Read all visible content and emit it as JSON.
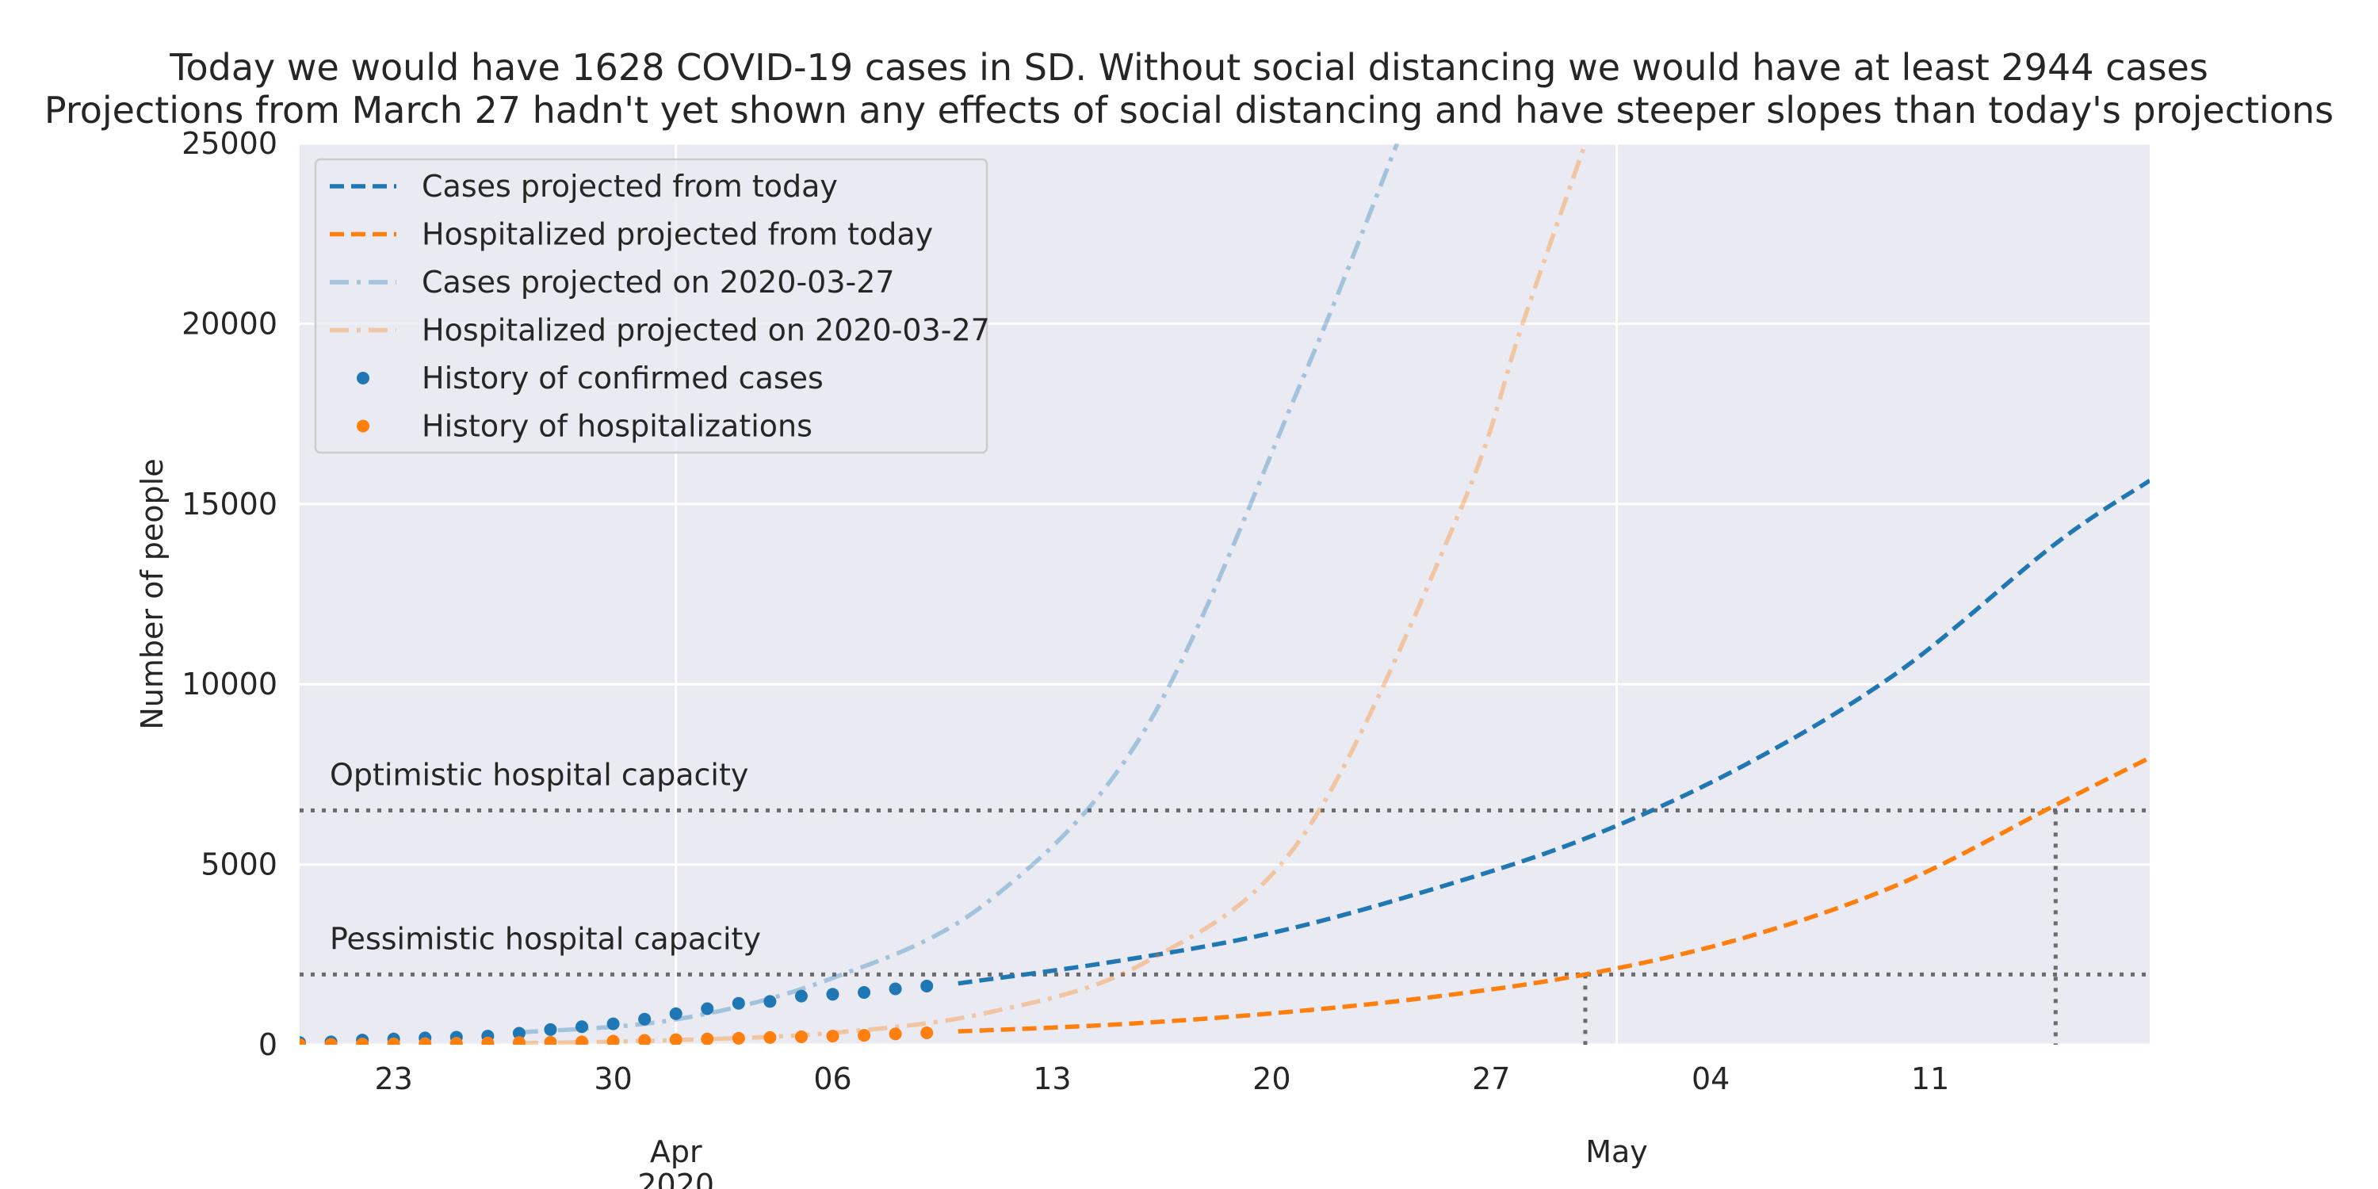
{
  "chart_data": {
    "type": "line",
    "title": "Today we would have 1628 COVID-19 cases in SD. Without social distancing we would have at least 2944 cases",
    "subtitle": "Projections from March 27 hadn't yet shown any effects of social distancing and have steeper slopes than today's projections",
    "ylabel": "Number of people",
    "xlabel": "",
    "x_range": [
      "2020-03-20",
      "2020-05-18"
    ],
    "ylim": [
      0,
      25000
    ],
    "y_ticks": [
      0,
      5000,
      10000,
      15000,
      20000,
      25000
    ],
    "x_ticks": [
      {
        "date": "2020-03-23",
        "label": "23"
      },
      {
        "date": "2020-03-30",
        "label": "30"
      },
      {
        "date": "2020-04-06",
        "label": "06"
      },
      {
        "date": "2020-04-13",
        "label": "13"
      },
      {
        "date": "2020-04-20",
        "label": "20"
      },
      {
        "date": "2020-04-27",
        "label": "27"
      },
      {
        "date": "2020-05-04",
        "label": "04"
      },
      {
        "date": "2020-05-11",
        "label": "11"
      }
    ],
    "x_major_ticks": [
      {
        "date": "2020-04-01",
        "label": "Apr",
        "sublabel": "2020"
      },
      {
        "date": "2020-05-01",
        "label": "May",
        "sublabel": ""
      }
    ],
    "grid": true,
    "legend_placement": "top-left",
    "capacity_lines": [
      {
        "label": "Optimistic hospital capacity",
        "value": 6500,
        "crossings": [
          "2020-05-15"
        ]
      },
      {
        "label": "Pessimistic hospital capacity",
        "value": 1950,
        "crossings": [
          "2020-04-30"
        ]
      }
    ],
    "series": [
      {
        "name": "Cases projected from today",
        "color": "#1f77b4",
        "style": "dashed",
        "opacity": 1,
        "points": [
          [
            "2020-04-10",
            1700
          ],
          [
            "2020-04-15",
            2310
          ],
          [
            "2020-04-20",
            3100
          ],
          [
            "2020-04-25",
            4280
          ],
          [
            "2020-04-30",
            5720
          ],
          [
            "2020-05-05",
            7720
          ],
          [
            "2020-05-10",
            10350
          ],
          [
            "2020-05-15",
            13900
          ],
          [
            "2020-05-18",
            15650
          ]
        ]
      },
      {
        "name": "Hospitalized projected from today",
        "color": "#ff7f0e",
        "style": "dashed",
        "opacity": 1,
        "points": [
          [
            "2020-04-10",
            370
          ],
          [
            "2020-04-15",
            560
          ],
          [
            "2020-04-20",
            870
          ],
          [
            "2020-04-25",
            1310
          ],
          [
            "2020-04-30",
            1950
          ],
          [
            "2020-05-05",
            2950
          ],
          [
            "2020-05-10",
            4450
          ],
          [
            "2020-05-15",
            6650
          ],
          [
            "2020-05-18",
            7960
          ]
        ]
      },
      {
        "name": "Cases projected on 2020-03-27",
        "color": "#1f77b4",
        "style": "dashdot",
        "opacity": 0.35,
        "points": [
          [
            "2020-03-27",
            340
          ],
          [
            "2020-04-01",
            700
          ],
          [
            "2020-04-06",
            1850
          ],
          [
            "2020-04-11",
            4000
          ],
          [
            "2020-04-16",
            8800
          ],
          [
            "2020-04-21",
            18500
          ],
          [
            "2020-04-24",
            25000
          ]
        ]
      },
      {
        "name": "Hospitalized projected on 2020-03-27",
        "color": "#ff7f0e",
        "style": "dashdot",
        "opacity": 0.35,
        "points": [
          [
            "2020-03-27",
            40
          ],
          [
            "2020-04-01",
            130
          ],
          [
            "2020-04-06",
            330
          ],
          [
            "2020-04-11",
            900
          ],
          [
            "2020-04-16",
            2300
          ],
          [
            "2020-04-21",
            5800
          ],
          [
            "2020-04-26",
            14800
          ],
          [
            "2020-04-28",
            20000
          ],
          [
            "2020-04-30",
            25000
          ]
        ]
      },
      {
        "name": "History of confirmed cases",
        "color": "#1f77b4",
        "style": "markers",
        "opacity": 1,
        "points": [
          [
            "2020-03-20",
            60
          ],
          [
            "2020-03-21",
            80
          ],
          [
            "2020-03-22",
            130
          ],
          [
            "2020-03-23",
            160
          ],
          [
            "2020-03-24",
            190
          ],
          [
            "2020-03-25",
            210
          ],
          [
            "2020-03-26",
            240
          ],
          [
            "2020-03-27",
            320
          ],
          [
            "2020-03-28",
            420
          ],
          [
            "2020-03-29",
            500
          ],
          [
            "2020-03-30",
            580
          ],
          [
            "2020-03-31",
            710
          ],
          [
            "2020-04-01",
            860
          ],
          [
            "2020-04-02",
            1000
          ],
          [
            "2020-04-03",
            1150
          ],
          [
            "2020-04-04",
            1200
          ],
          [
            "2020-04-05",
            1350
          ],
          [
            "2020-04-06",
            1400
          ],
          [
            "2020-04-07",
            1450
          ],
          [
            "2020-04-08",
            1550
          ],
          [
            "2020-04-09",
            1628
          ]
        ]
      },
      {
        "name": "History of hospitalizations",
        "color": "#ff7f0e",
        "style": "markers",
        "opacity": 1,
        "points": [
          [
            "2020-03-20",
            5
          ],
          [
            "2020-03-21",
            10
          ],
          [
            "2020-03-22",
            20
          ],
          [
            "2020-03-23",
            25
          ],
          [
            "2020-03-24",
            30
          ],
          [
            "2020-03-25",
            40
          ],
          [
            "2020-03-26",
            50
          ],
          [
            "2020-03-27",
            60
          ],
          [
            "2020-03-28",
            70
          ],
          [
            "2020-03-29",
            80
          ],
          [
            "2020-03-30",
            100
          ],
          [
            "2020-03-31",
            120
          ],
          [
            "2020-04-01",
            140
          ],
          [
            "2020-04-02",
            160
          ],
          [
            "2020-04-03",
            180
          ],
          [
            "2020-04-04",
            200
          ],
          [
            "2020-04-05",
            220
          ],
          [
            "2020-04-06",
            240
          ],
          [
            "2020-04-07",
            260
          ],
          [
            "2020-04-08",
            300
          ],
          [
            "2020-04-09",
            330
          ]
        ]
      }
    ]
  }
}
